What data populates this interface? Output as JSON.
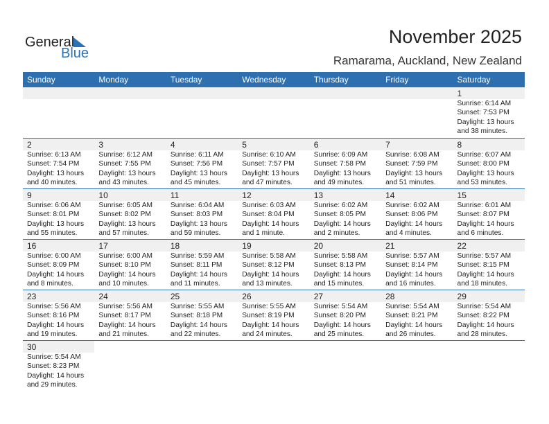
{
  "logo": {
    "text1": "General",
    "text2": "Blue"
  },
  "title": "November 2025",
  "location": "Ramarama, Auckland, New Zealand",
  "weekdays": [
    "Sunday",
    "Monday",
    "Tuesday",
    "Wednesday",
    "Thursday",
    "Friday",
    "Saturday"
  ],
  "colors": {
    "header": "#2e6fb0",
    "date_strip": "#f0f0f0"
  },
  "weeks": [
    [
      null,
      null,
      null,
      null,
      null,
      null,
      {
        "day": "1",
        "rise": "Sunrise: 6:14 AM",
        "set": "Sunset: 7:53 PM",
        "dl1": "Daylight: 13 hours",
        "dl2": "and 38 minutes."
      }
    ],
    [
      {
        "day": "2",
        "rise": "Sunrise: 6:13 AM",
        "set": "Sunset: 7:54 PM",
        "dl1": "Daylight: 13 hours",
        "dl2": "and 40 minutes."
      },
      {
        "day": "3",
        "rise": "Sunrise: 6:12 AM",
        "set": "Sunset: 7:55 PM",
        "dl1": "Daylight: 13 hours",
        "dl2": "and 43 minutes."
      },
      {
        "day": "4",
        "rise": "Sunrise: 6:11 AM",
        "set": "Sunset: 7:56 PM",
        "dl1": "Daylight: 13 hours",
        "dl2": "and 45 minutes."
      },
      {
        "day": "5",
        "rise": "Sunrise: 6:10 AM",
        "set": "Sunset: 7:57 PM",
        "dl1": "Daylight: 13 hours",
        "dl2": "and 47 minutes."
      },
      {
        "day": "6",
        "rise": "Sunrise: 6:09 AM",
        "set": "Sunset: 7:58 PM",
        "dl1": "Daylight: 13 hours",
        "dl2": "and 49 minutes."
      },
      {
        "day": "7",
        "rise": "Sunrise: 6:08 AM",
        "set": "Sunset: 7:59 PM",
        "dl1": "Daylight: 13 hours",
        "dl2": "and 51 minutes."
      },
      {
        "day": "8",
        "rise": "Sunrise: 6:07 AM",
        "set": "Sunset: 8:00 PM",
        "dl1": "Daylight: 13 hours",
        "dl2": "and 53 minutes."
      }
    ],
    [
      {
        "day": "9",
        "rise": "Sunrise: 6:06 AM",
        "set": "Sunset: 8:01 PM",
        "dl1": "Daylight: 13 hours",
        "dl2": "and 55 minutes."
      },
      {
        "day": "10",
        "rise": "Sunrise: 6:05 AM",
        "set": "Sunset: 8:02 PM",
        "dl1": "Daylight: 13 hours",
        "dl2": "and 57 minutes."
      },
      {
        "day": "11",
        "rise": "Sunrise: 6:04 AM",
        "set": "Sunset: 8:03 PM",
        "dl1": "Daylight: 13 hours",
        "dl2": "and 59 minutes."
      },
      {
        "day": "12",
        "rise": "Sunrise: 6:03 AM",
        "set": "Sunset: 8:04 PM",
        "dl1": "Daylight: 14 hours",
        "dl2": "and 1 minute."
      },
      {
        "day": "13",
        "rise": "Sunrise: 6:02 AM",
        "set": "Sunset: 8:05 PM",
        "dl1": "Daylight: 14 hours",
        "dl2": "and 2 minutes."
      },
      {
        "day": "14",
        "rise": "Sunrise: 6:02 AM",
        "set": "Sunset: 8:06 PM",
        "dl1": "Daylight: 14 hours",
        "dl2": "and 4 minutes."
      },
      {
        "day": "15",
        "rise": "Sunrise: 6:01 AM",
        "set": "Sunset: 8:07 PM",
        "dl1": "Daylight: 14 hours",
        "dl2": "and 6 minutes."
      }
    ],
    [
      {
        "day": "16",
        "rise": "Sunrise: 6:00 AM",
        "set": "Sunset: 8:09 PM",
        "dl1": "Daylight: 14 hours",
        "dl2": "and 8 minutes."
      },
      {
        "day": "17",
        "rise": "Sunrise: 6:00 AM",
        "set": "Sunset: 8:10 PM",
        "dl1": "Daylight: 14 hours",
        "dl2": "and 10 minutes."
      },
      {
        "day": "18",
        "rise": "Sunrise: 5:59 AM",
        "set": "Sunset: 8:11 PM",
        "dl1": "Daylight: 14 hours",
        "dl2": "and 11 minutes."
      },
      {
        "day": "19",
        "rise": "Sunrise: 5:58 AM",
        "set": "Sunset: 8:12 PM",
        "dl1": "Daylight: 14 hours",
        "dl2": "and 13 minutes."
      },
      {
        "day": "20",
        "rise": "Sunrise: 5:58 AM",
        "set": "Sunset: 8:13 PM",
        "dl1": "Daylight: 14 hours",
        "dl2": "and 15 minutes."
      },
      {
        "day": "21",
        "rise": "Sunrise: 5:57 AM",
        "set": "Sunset: 8:14 PM",
        "dl1": "Daylight: 14 hours",
        "dl2": "and 16 minutes."
      },
      {
        "day": "22",
        "rise": "Sunrise: 5:57 AM",
        "set": "Sunset: 8:15 PM",
        "dl1": "Daylight: 14 hours",
        "dl2": "and 18 minutes."
      }
    ],
    [
      {
        "day": "23",
        "rise": "Sunrise: 5:56 AM",
        "set": "Sunset: 8:16 PM",
        "dl1": "Daylight: 14 hours",
        "dl2": "and 19 minutes."
      },
      {
        "day": "24",
        "rise": "Sunrise: 5:56 AM",
        "set": "Sunset: 8:17 PM",
        "dl1": "Daylight: 14 hours",
        "dl2": "and 21 minutes."
      },
      {
        "day": "25",
        "rise": "Sunrise: 5:55 AM",
        "set": "Sunset: 8:18 PM",
        "dl1": "Daylight: 14 hours",
        "dl2": "and 22 minutes."
      },
      {
        "day": "26",
        "rise": "Sunrise: 5:55 AM",
        "set": "Sunset: 8:19 PM",
        "dl1": "Daylight: 14 hours",
        "dl2": "and 24 minutes."
      },
      {
        "day": "27",
        "rise": "Sunrise: 5:54 AM",
        "set": "Sunset: 8:20 PM",
        "dl1": "Daylight: 14 hours",
        "dl2": "and 25 minutes."
      },
      {
        "day": "28",
        "rise": "Sunrise: 5:54 AM",
        "set": "Sunset: 8:21 PM",
        "dl1": "Daylight: 14 hours",
        "dl2": "and 26 minutes."
      },
      {
        "day": "29",
        "rise": "Sunrise: 5:54 AM",
        "set": "Sunset: 8:22 PM",
        "dl1": "Daylight: 14 hours",
        "dl2": "and 28 minutes."
      }
    ],
    [
      {
        "day": "30",
        "rise": "Sunrise: 5:54 AM",
        "set": "Sunset: 8:23 PM",
        "dl1": "Daylight: 14 hours",
        "dl2": "and 29 minutes."
      },
      null,
      null,
      null,
      null,
      null,
      null
    ]
  ]
}
